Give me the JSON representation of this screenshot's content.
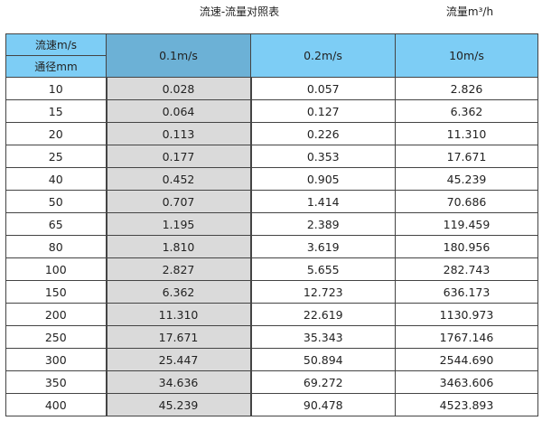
{
  "title": "流速-流量对照表",
  "unit": "流量m³/h",
  "header": {
    "velocity_label": "流速m/s",
    "diameter_label": "通径mm",
    "columns": [
      "0.1m/s",
      "0.2m/s",
      "10m/s"
    ]
  },
  "colors": {
    "header": "#7dcdf5",
    "header_highlight": "#6cb1d6",
    "highlight_column": "#dadada"
  },
  "rows": [
    [
      "10",
      "0.028",
      "0.057",
      "2.826"
    ],
    [
      "15",
      "0.064",
      "0.127",
      "6.362"
    ],
    [
      "20",
      "0.113",
      "0.226",
      "11.310"
    ],
    [
      "25",
      "0.177",
      "0.353",
      "17.671"
    ],
    [
      "40",
      "0.452",
      "0.905",
      "45.239"
    ],
    [
      "50",
      "0.707",
      "1.414",
      "70.686"
    ],
    [
      "65",
      "1.195",
      "2.389",
      "119.459"
    ],
    [
      "80",
      "1.810",
      "3.619",
      "180.956"
    ],
    [
      "100",
      "2.827",
      "5.655",
      "282.743"
    ],
    [
      "150",
      "6.362",
      "12.723",
      "636.173"
    ],
    [
      "200",
      "11.310",
      "22.619",
      "1130.973"
    ],
    [
      "250",
      "17.671",
      "35.343",
      "1767.146"
    ],
    [
      "300",
      "25.447",
      "50.894",
      "2544.690"
    ],
    [
      "350",
      "34.636",
      "69.272",
      "3463.606"
    ],
    [
      "400",
      "45.239",
      "90.478",
      "4523.893"
    ]
  ]
}
